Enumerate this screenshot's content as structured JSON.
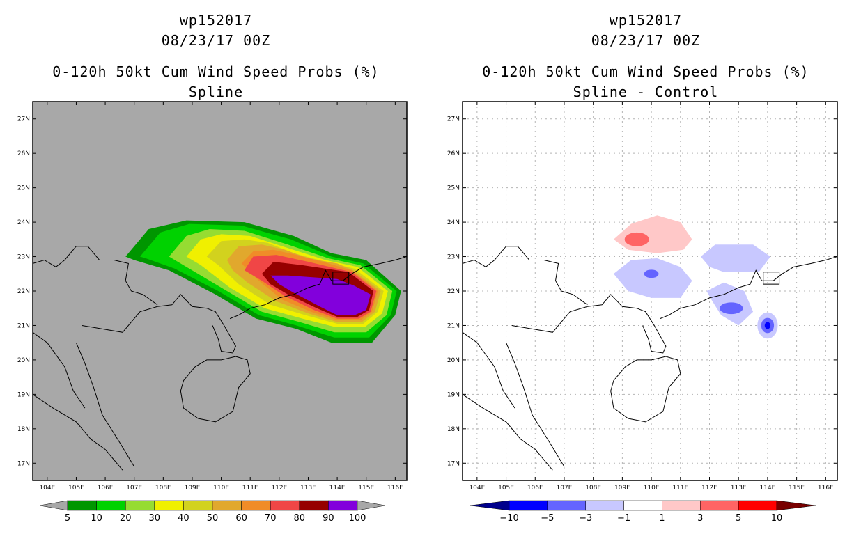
{
  "chart_data": [
    {
      "type": "filled-contour-map",
      "storm_id": "wp152017",
      "datetime": "08/23/17 00Z",
      "title": "0-120h 50kt Cum Wind Speed Probs (%)",
      "subtitle": "Spline",
      "lon_ticks": [
        "104E",
        "105E",
        "106E",
        "107E",
        "108E",
        "109E",
        "110E",
        "111E",
        "112E",
        "113E",
        "114E",
        "115E",
        "116E"
      ],
      "lat_ticks": [
        "27N",
        "26N",
        "25N",
        "24N",
        "23N",
        "22N",
        "21N",
        "20N",
        "19N",
        "18N",
        "17N"
      ],
      "lon_range": [
        103.5,
        116.4
      ],
      "lat_range": [
        16.5,
        27.5
      ],
      "background": "#a8a8a8",
      "gridlines": false,
      "colorbar": {
        "labels": [
          "5",
          "10",
          "20",
          "30",
          "40",
          "50",
          "60",
          "70",
          "80",
          "90",
          "100"
        ],
        "colors": [
          "#009600",
          "#00d200",
          "#96dc32",
          "#f0f000",
          "#d2d21e",
          "#e1a82d",
          "#f08c28",
          "#f04646",
          "#960000",
          "#8200dc"
        ],
        "extend_color": "#a8a8a8"
      }
    },
    {
      "type": "filled-contour-map",
      "storm_id": "wp152017",
      "datetime": "08/23/17 00Z",
      "title": "0-120h 50kt Cum Wind Speed Probs (%)",
      "subtitle": "Spline - Control",
      "lon_ticks": [
        "104E",
        "105E",
        "106E",
        "107E",
        "108E",
        "109E",
        "110E",
        "111E",
        "112E",
        "113E",
        "114E",
        "115E",
        "116E"
      ],
      "lat_ticks": [
        "27N",
        "26N",
        "25N",
        "24N",
        "23N",
        "22N",
        "21N",
        "20N",
        "19N",
        "18N",
        "17N"
      ],
      "lon_range": [
        103.5,
        116.4
      ],
      "lat_range": [
        16.5,
        27.5
      ],
      "background": "#ffffff",
      "gridlines": true,
      "colorbar": {
        "labels": [
          "-10",
          "-5",
          "-3",
          "-1",
          "1",
          "3",
          "5",
          "10"
        ],
        "colors": [
          "#0000ff",
          "#6464ff",
          "#c8c8ff",
          "#ffffff",
          "#ffc8c8",
          "#ff6464",
          "#ff0000"
        ],
        "left_extend": "#00008c",
        "right_extend": "#780000"
      }
    }
  ]
}
